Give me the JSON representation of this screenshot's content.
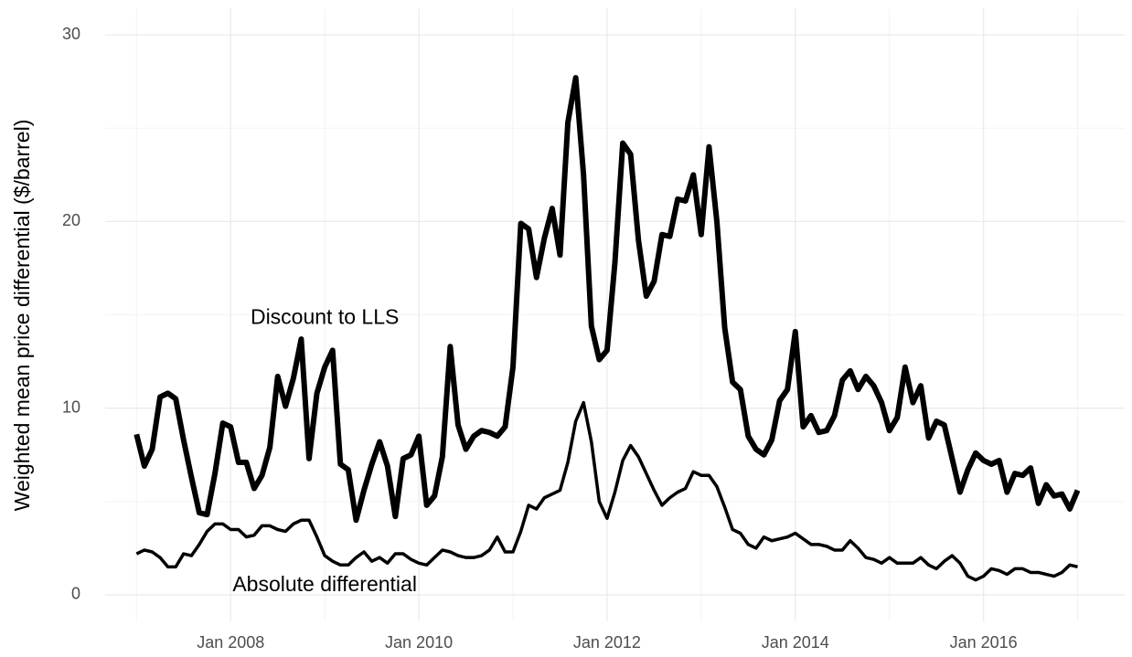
{
  "chart_data": {
    "type": "line",
    "y_label": "Weighted mean price differential ($/barrel)",
    "x": [
      "2007-01",
      "2007-02",
      "2007-03",
      "2007-04",
      "2007-05",
      "2007-06",
      "2007-07",
      "2007-08",
      "2007-09",
      "2007-10",
      "2007-11",
      "2007-12",
      "2008-01",
      "2008-02",
      "2008-03",
      "2008-04",
      "2008-05",
      "2008-06",
      "2008-07",
      "2008-08",
      "2008-09",
      "2008-10",
      "2008-11",
      "2008-12",
      "2009-01",
      "2009-02",
      "2009-03",
      "2009-04",
      "2009-05",
      "2009-06",
      "2009-07",
      "2009-08",
      "2009-09",
      "2009-10",
      "2009-11",
      "2009-12",
      "2010-01",
      "2010-02",
      "2010-03",
      "2010-04",
      "2010-05",
      "2010-06",
      "2010-07",
      "2010-08",
      "2010-09",
      "2010-10",
      "2010-11",
      "2010-12",
      "2011-01",
      "2011-02",
      "2011-03",
      "2011-04",
      "2011-05",
      "2011-06",
      "2011-07",
      "2011-08",
      "2011-09",
      "2011-10",
      "2011-11",
      "2011-12",
      "2012-01",
      "2012-02",
      "2012-03",
      "2012-04",
      "2012-05",
      "2012-06",
      "2012-07",
      "2012-08",
      "2012-09",
      "2012-10",
      "2012-11",
      "2012-12",
      "2013-01",
      "2013-02",
      "2013-03",
      "2013-04",
      "2013-05",
      "2013-06",
      "2013-07",
      "2013-08",
      "2013-09",
      "2013-10",
      "2013-11",
      "2013-12",
      "2014-01",
      "2014-02",
      "2014-03",
      "2014-04",
      "2014-05",
      "2014-06",
      "2014-07",
      "2014-08",
      "2014-09",
      "2014-10",
      "2014-11",
      "2014-12",
      "2015-01",
      "2015-02",
      "2015-03",
      "2015-04",
      "2015-05",
      "2015-06",
      "2015-07",
      "2015-08",
      "2015-09",
      "2015-10",
      "2015-11",
      "2015-12",
      "2016-01",
      "2016-02",
      "2016-03",
      "2016-04",
      "2016-05",
      "2016-06",
      "2016-07",
      "2016-08",
      "2016-09",
      "2016-10",
      "2016-11",
      "2016-12",
      "2017-01"
    ],
    "series": [
      {
        "name": "Discount to LLS",
        "color": "#000000",
        "values": [
          8.6,
          6.9,
          7.8,
          10.6,
          10.8,
          10.5,
          8.3,
          6.3,
          4.4,
          4.3,
          6.5,
          9.2,
          9.0,
          7.1,
          7.1,
          5.7,
          6.4,
          7.9,
          11.7,
          10.1,
          11.6,
          13.7,
          7.3,
          10.8,
          12.2,
          13.1,
          7.0,
          6.7,
          4.0,
          5.6,
          7.0,
          8.2,
          6.9,
          4.2,
          7.3,
          7.5,
          8.5,
          4.8,
          5.3,
          7.4,
          13.3,
          9.1,
          7.8,
          8.5,
          8.8,
          8.7,
          8.5,
          9.0,
          12.2,
          19.9,
          19.6,
          17.0,
          19.1,
          20.7,
          18.2,
          25.3,
          27.7,
          22.5,
          14.4,
          12.6,
          13.1,
          17.8,
          24.2,
          23.6,
          19.0,
          16.0,
          16.8,
          19.3,
          19.2,
          21.2,
          21.1,
          22.5,
          19.3,
          24.0,
          20.0,
          14.3,
          11.4,
          11.0,
          8.5,
          7.8,
          7.5,
          8.3,
          10.4,
          11.0,
          14.1,
          9.0,
          9.6,
          8.7,
          8.8,
          9.6,
          11.5,
          12.0,
          11.0,
          11.7,
          11.2,
          10.3,
          8.8,
          9.5,
          12.2,
          10.3,
          11.2,
          8.4,
          9.3,
          9.1,
          7.3,
          5.5,
          6.7,
          7.6,
          7.2,
          7.0,
          7.2,
          5.5,
          6.5,
          6.4,
          6.8,
          4.9,
          5.9,
          5.3,
          5.4,
          4.6,
          5.6
        ]
      },
      {
        "name": "Absolute differential",
        "color": "#000000",
        "values": [
          2.2,
          2.4,
          2.3,
          2.0,
          1.5,
          1.5,
          2.2,
          2.1,
          2.7,
          3.4,
          3.8,
          3.8,
          3.5,
          3.5,
          3.1,
          3.2,
          3.7,
          3.7,
          3.5,
          3.4,
          3.8,
          4.0,
          4.0,
          3.1,
          2.1,
          1.8,
          1.6,
          1.6,
          2.0,
          2.3,
          1.8,
          2.0,
          1.7,
          2.2,
          2.2,
          1.9,
          1.7,
          1.6,
          2.0,
          2.4,
          2.3,
          2.1,
          2.0,
          2.0,
          2.1,
          2.4,
          3.1,
          2.3,
          2.3,
          3.4,
          4.8,
          4.6,
          5.2,
          5.4,
          5.6,
          7.1,
          9.3,
          10.3,
          8.2,
          5.0,
          4.1,
          5.5,
          7.2,
          8.0,
          7.4,
          6.5,
          5.6,
          4.8,
          5.2,
          5.5,
          5.7,
          6.6,
          6.4,
          6.4,
          5.8,
          4.7,
          3.5,
          3.3,
          2.7,
          2.5,
          3.1,
          2.9,
          3.0,
          3.1,
          3.3,
          3.0,
          2.7,
          2.7,
          2.6,
          2.4,
          2.4,
          2.9,
          2.5,
          2.0,
          1.9,
          1.7,
          2.0,
          1.7,
          1.7,
          1.7,
          2.0,
          1.6,
          1.4,
          1.8,
          2.1,
          1.7,
          1.0,
          0.8,
          1.0,
          1.4,
          1.3,
          1.1,
          1.4,
          1.4,
          1.2,
          1.2,
          1.1,
          1.0,
          1.2,
          1.6,
          1.5
        ]
      }
    ],
    "annotations": [
      {
        "text": "Discount to LLS",
        "x": "2009-01",
        "y": 14.8
      },
      {
        "text": "Absolute differential",
        "x": "2009-01",
        "y": 0.5
      }
    ],
    "xlim": [
      "2006-09",
      "2017-07"
    ],
    "xticks": [
      {
        "value": "2008-01",
        "label": "Jan 2008"
      },
      {
        "value": "2010-01",
        "label": "Jan 2010"
      },
      {
        "value": "2012-01",
        "label": "Jan 2012"
      },
      {
        "value": "2014-01",
        "label": "Jan 2014"
      },
      {
        "value": "2016-01",
        "label": "Jan 2016"
      }
    ],
    "x_minor_ticks": [
      "2007-01",
      "2009-01",
      "2011-01",
      "2013-01",
      "2015-01",
      "2017-01"
    ],
    "ylim": [
      -1.4,
      31.4
    ],
    "yticks": [
      0,
      10,
      20,
      30
    ],
    "y_minor_ticks": [
      5,
      15,
      25
    ],
    "grid": true
  }
}
